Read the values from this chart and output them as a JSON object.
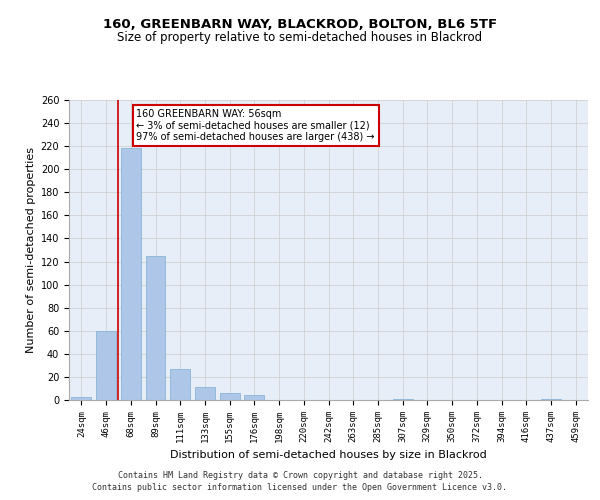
{
  "title_line1": "160, GREENBARN WAY, BLACKROD, BOLTON, BL6 5TF",
  "title_line2": "Size of property relative to semi-detached houses in Blackrod",
  "xlabel": "Distribution of semi-detached houses by size in Blackrod",
  "ylabel": "Number of semi-detached properties",
  "categories": [
    "24sqm",
    "46sqm",
    "68sqm",
    "89sqm",
    "111sqm",
    "133sqm",
    "155sqm",
    "176sqm",
    "198sqm",
    "220sqm",
    "242sqm",
    "263sqm",
    "285sqm",
    "307sqm",
    "329sqm",
    "350sqm",
    "372sqm",
    "394sqm",
    "416sqm",
    "437sqm",
    "459sqm"
  ],
  "values": [
    3,
    60,
    218,
    125,
    27,
    11,
    6,
    4,
    0,
    0,
    0,
    0,
    0,
    1,
    0,
    0,
    0,
    0,
    0,
    1,
    0
  ],
  "bar_color": "#aec6e8",
  "bar_edge_color": "#7bafd4",
  "vline_x": 1.5,
  "annotation_title": "160 GREENBARN WAY: 56sqm",
  "annotation_line1": "← 3% of semi-detached houses are smaller (12)",
  "annotation_line2": "97% of semi-detached houses are larger (438) →",
  "vline_color": "#cc0000",
  "annotation_box_color": "#ffffff",
  "annotation_box_edge": "#cc0000",
  "ylim": [
    0,
    260
  ],
  "yticks": [
    0,
    20,
    40,
    60,
    80,
    100,
    120,
    140,
    160,
    180,
    200,
    220,
    240,
    260
  ],
  "grid_color": "#cccccc",
  "bg_color": "#e8eef7",
  "footer_line1": "Contains HM Land Registry data © Crown copyright and database right 2025.",
  "footer_line2": "Contains public sector information licensed under the Open Government Licence v3.0.",
  "title_fontsize": 9.5,
  "subtitle_fontsize": 8.5,
  "axis_label_fontsize": 8,
  "tick_fontsize": 6.5,
  "annotation_fontsize": 7,
  "footer_fontsize": 6
}
